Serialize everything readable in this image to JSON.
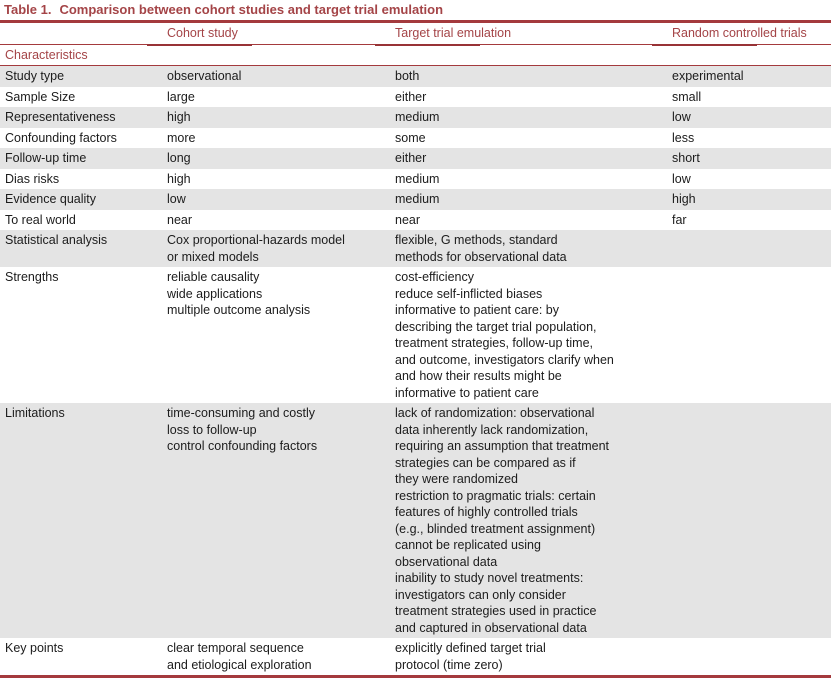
{
  "table": {
    "title_prefix": "Table 1.",
    "title_text": "Comparison between cohort studies and target trial emulation",
    "columns": [
      "",
      "Cohort study",
      "Target trial emulation",
      "Random controlled trials"
    ],
    "section_header": "Characteristics",
    "rows": [
      {
        "label": "Study type",
        "cohort": "observational",
        "tte": "both",
        "rct": "experimental"
      },
      {
        "label": "Sample Size",
        "cohort": "large",
        "tte": "either",
        "rct": "small"
      },
      {
        "label": "Representativeness",
        "cohort": "high",
        "tte": "medium",
        "rct": "low"
      },
      {
        "label": "Confounding factors",
        "cohort": "more",
        "tte": "some",
        "rct": "less"
      },
      {
        "label": "Follow-up time",
        "cohort": "long",
        "tte": "either",
        "rct": "short"
      },
      {
        "label": "Dias risks",
        "cohort": "high",
        "tte": "medium",
        "rct": "low"
      },
      {
        "label": "Evidence quality",
        "cohort": "low",
        "tte": "medium",
        "rct": "high"
      },
      {
        "label": "To real world",
        "cohort": "near",
        "tte": "near",
        "rct": "far"
      },
      {
        "label": "Statistical analysis",
        "cohort": "Cox proportional-hazards model\nor mixed models",
        "tte": "flexible, G methods, standard\nmethods for observational data",
        "rct": ""
      },
      {
        "label": "Strengths",
        "cohort": "reliable causality\nwide applications\nmultiple outcome analysis",
        "tte": "cost-efficiency\nreduce self-inflicted biases\ninformative to patient care: by\ndescribing the target trial population,\ntreatment strategies, follow-up time,\nand outcome, investigators clarify when\nand how their results might be\ninformative to patient care",
        "rct": ""
      },
      {
        "label": "Limitations",
        "cohort": "time-consuming and costly\nloss to follow-up\ncontrol confounding factors",
        "tte": "lack of randomization: observational\ndata inherently lack randomization,\nrequiring an assumption that treatment\nstrategies can be compared as if\nthey were randomized\nrestriction to pragmatic trials: certain\nfeatures of highly controlled trials\n(e.g., blinded treatment assignment)\ncannot be replicated using\nobservational data\ninability to study novel treatments:\ninvestigators can only consider\ntreatment strategies used in practice\nand captured in observational data",
        "rct": ""
      },
      {
        "label": "Key points",
        "cohort": "clear temporal sequence\nand etiological exploration",
        "tte": "explicitly defined target trial\nprotocol (time zero)",
        "rct": ""
      }
    ],
    "colors": {
      "accent_red_text": "#a44447",
      "accent_red_rule": "#a43a3d",
      "shaded_row": "#e4e4e4"
    }
  }
}
